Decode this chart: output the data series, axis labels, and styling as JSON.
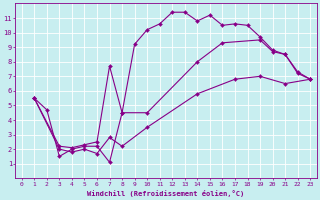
{
  "xlabel": "Windchill (Refroidissement éolien,°C)",
  "bg_color": "#c8eef0",
  "line_color": "#880088",
  "xlim": [
    -0.5,
    23.5
  ],
  "ylim": [
    0,
    12
  ],
  "xticks": [
    0,
    1,
    2,
    3,
    4,
    5,
    6,
    7,
    8,
    9,
    10,
    11,
    12,
    13,
    14,
    15,
    16,
    17,
    18,
    19,
    20,
    21,
    22,
    23
  ],
  "yticks": [
    1,
    2,
    3,
    4,
    5,
    6,
    7,
    8,
    9,
    10,
    11
  ],
  "line1_x": [
    1,
    2,
    3,
    4,
    5,
    6,
    7,
    8,
    9,
    10,
    11,
    12,
    13,
    14,
    15,
    16,
    17,
    18,
    19,
    20,
    21,
    22,
    23
  ],
  "line1_y": [
    5.5,
    4.7,
    1.5,
    2.0,
    2.2,
    2.2,
    1.1,
    4.5,
    9.2,
    10.2,
    10.6,
    11.4,
    11.4,
    10.8,
    11.2,
    10.5,
    10.6,
    10.5,
    9.7,
    8.8,
    8.5,
    7.3,
    6.8
  ],
  "line2_x": [
    1,
    3,
    4,
    5,
    6,
    7,
    8,
    10,
    14,
    16,
    19,
    20,
    21,
    22,
    23
  ],
  "line2_y": [
    5.5,
    2.2,
    2.1,
    2.3,
    2.5,
    7.7,
    4.5,
    4.5,
    8.0,
    9.3,
    9.5,
    8.7,
    8.5,
    7.2,
    6.8
  ],
  "line3_x": [
    1,
    3,
    4,
    5,
    6,
    7,
    8,
    10,
    14,
    17,
    19,
    21,
    23
  ],
  "line3_y": [
    5.5,
    2.0,
    1.8,
    2.0,
    1.7,
    2.8,
    2.2,
    3.5,
    5.8,
    6.8,
    7.0,
    6.5,
    6.8
  ]
}
